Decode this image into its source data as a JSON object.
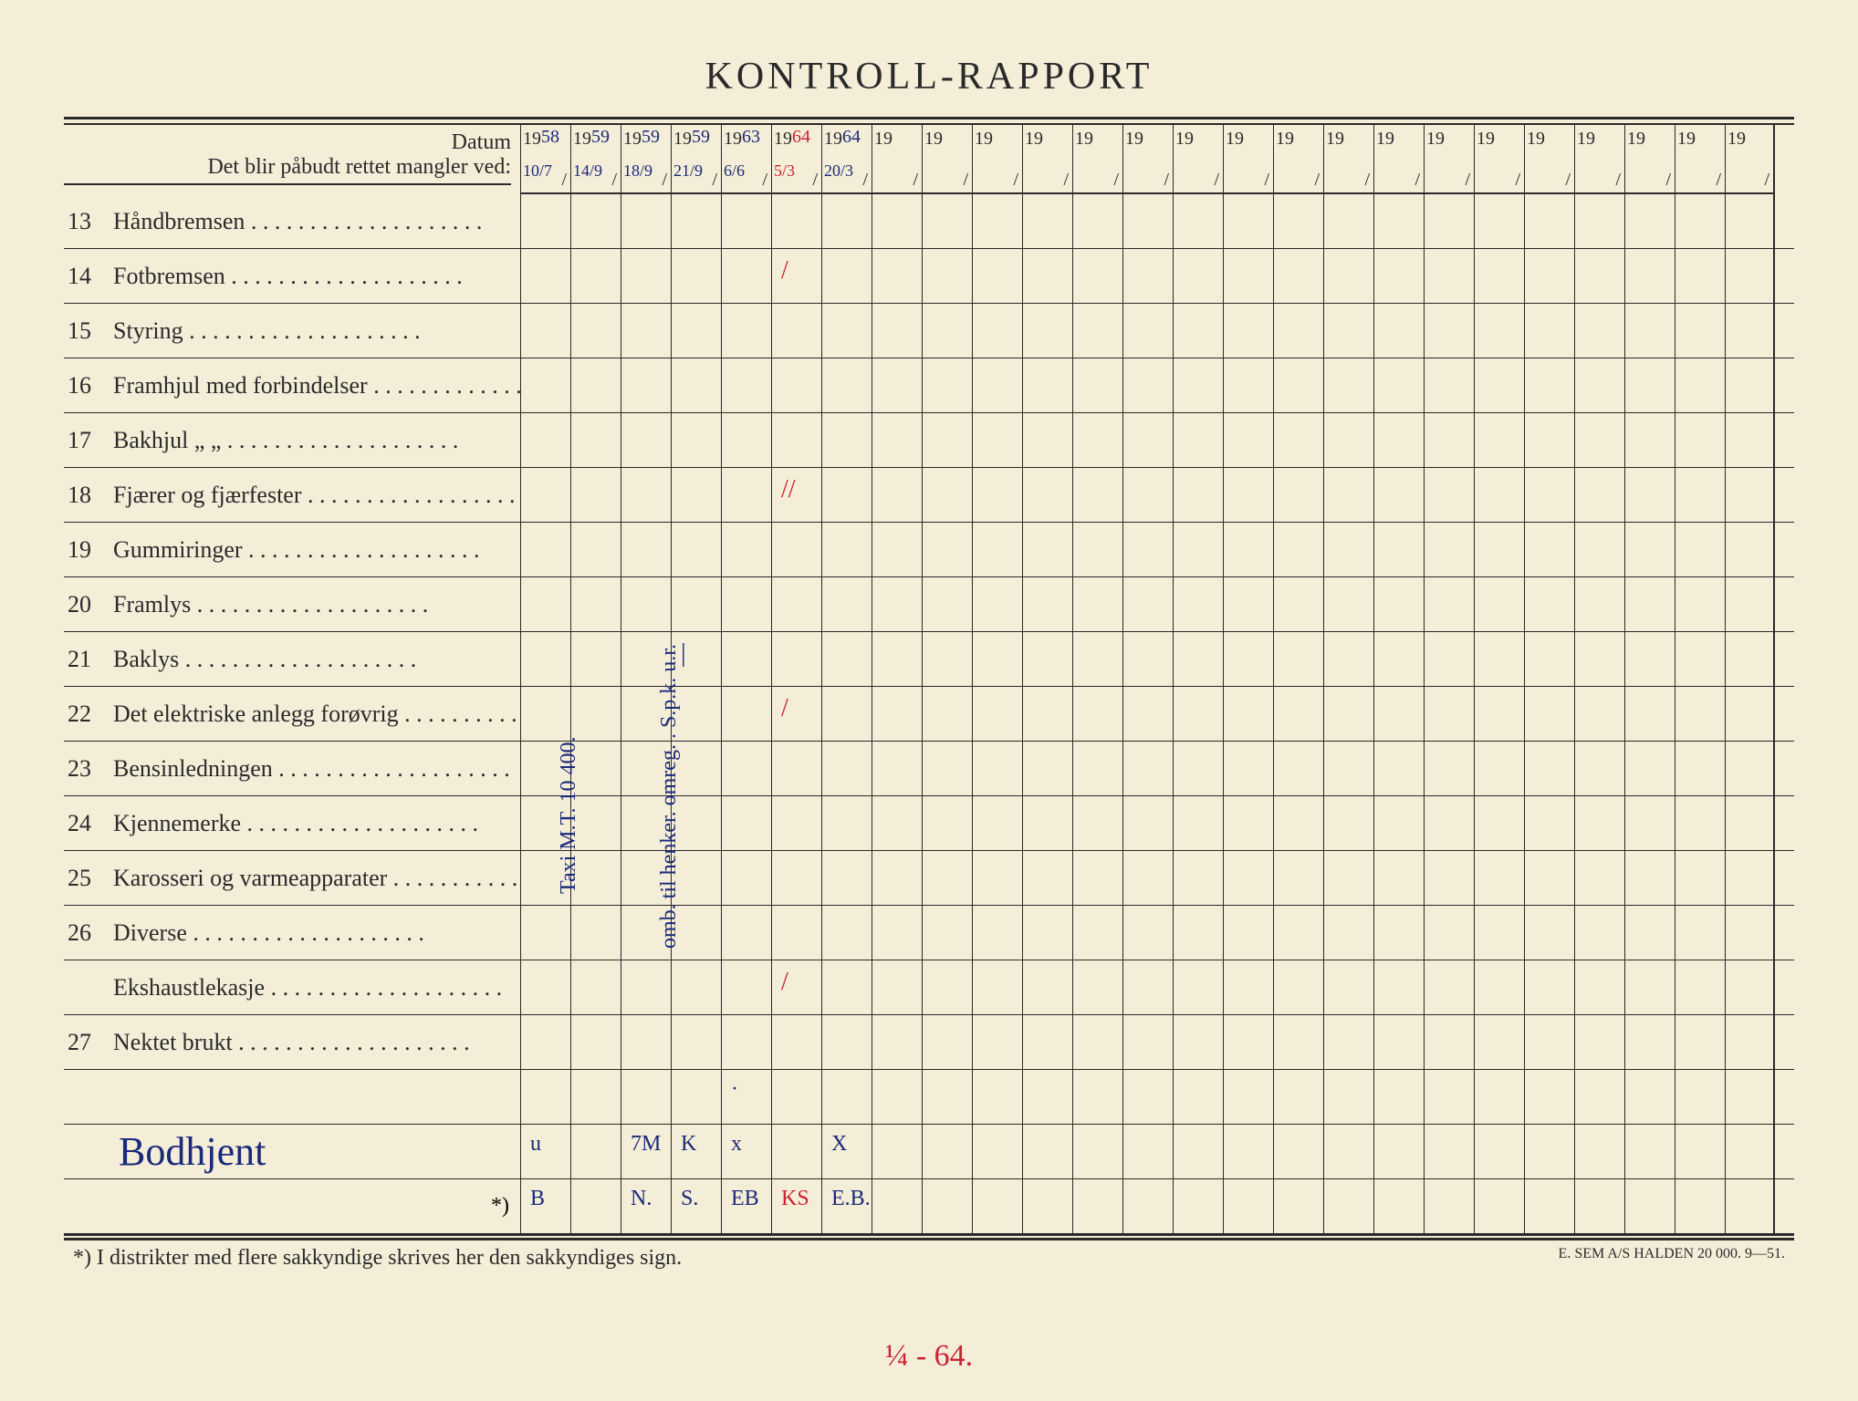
{
  "title": "KONTROLL-RAPPORT",
  "header": {
    "datum_label": "Datum",
    "mangler_label": "Det blir påbudt rettet mangler ved:"
  },
  "year_prefix": "19",
  "year_columns": [
    {
      "suffix": "58",
      "date": "10/7",
      "color": "blue"
    },
    {
      "suffix": "59",
      "date": "14/9",
      "color": "blue"
    },
    {
      "suffix": "59",
      "date": "18/9",
      "color": "blue"
    },
    {
      "suffix": "59",
      "date": "21/9",
      "color": "blue"
    },
    {
      "suffix": "63",
      "date": "6/6",
      "color": "blue"
    },
    {
      "suffix": "64",
      "date": "5/3",
      "color": "red"
    },
    {
      "suffix": "64",
      "date": "20/3",
      "color": "blue"
    },
    {
      "suffix": "",
      "date": "",
      "color": "blue"
    },
    {
      "suffix": "",
      "date": "",
      "color": "blue"
    },
    {
      "suffix": "",
      "date": "",
      "color": "blue"
    },
    {
      "suffix": "",
      "date": "",
      "color": "blue"
    },
    {
      "suffix": "",
      "date": "",
      "color": "blue"
    },
    {
      "suffix": "",
      "date": "",
      "color": "blue"
    },
    {
      "suffix": "",
      "date": "",
      "color": "blue"
    },
    {
      "suffix": "",
      "date": "",
      "color": "blue"
    },
    {
      "suffix": "",
      "date": "",
      "color": "blue"
    },
    {
      "suffix": "",
      "date": "",
      "color": "blue"
    },
    {
      "suffix": "",
      "date": "",
      "color": "blue"
    },
    {
      "suffix": "",
      "date": "",
      "color": "blue"
    },
    {
      "suffix": "",
      "date": "",
      "color": "blue"
    },
    {
      "suffix": "",
      "date": "",
      "color": "blue"
    },
    {
      "suffix": "",
      "date": "",
      "color": "blue"
    },
    {
      "suffix": "",
      "date": "",
      "color": "blue"
    },
    {
      "suffix": "",
      "date": "",
      "color": "blue"
    },
    {
      "suffix": "",
      "date": "",
      "color": "blue"
    }
  ],
  "rows": [
    {
      "num": "13",
      "label": "Håndbremsen",
      "marks": {}
    },
    {
      "num": "14",
      "label": "Fotbremsen",
      "marks": {
        "5": {
          "text": "/",
          "color": "red"
        }
      }
    },
    {
      "num": "15",
      "label": "Styring",
      "marks": {}
    },
    {
      "num": "16",
      "label": "Framhjul med forbindelser",
      "marks": {}
    },
    {
      "num": "17",
      "label": "Bakhjul      „          „",
      "marks": {}
    },
    {
      "num": "18",
      "label": "Fjærer og fjærfester",
      "marks": {
        "5": {
          "text": "//",
          "color": "red"
        }
      }
    },
    {
      "num": "19",
      "label": "Gummiringer",
      "marks": {}
    },
    {
      "num": "20",
      "label": "Framlys",
      "marks": {}
    },
    {
      "num": "21",
      "label": "Baklys",
      "marks": {
        "3": {
          "text": "|",
          "color": "blue"
        }
      }
    },
    {
      "num": "22",
      "label": "Det elektriske anlegg forøvrig",
      "marks": {
        "5": {
          "text": "/",
          "color": "red"
        }
      }
    },
    {
      "num": "23",
      "label": "Bensinledningen",
      "marks": {}
    },
    {
      "num": "24",
      "label": "Kjennemerke",
      "marks": {}
    },
    {
      "num": "25",
      "label": "Karosseri og varmeapparater",
      "marks": {}
    },
    {
      "num": "26",
      "label": "Diverse",
      "marks": {}
    },
    {
      "num": "",
      "label": "Ekshaustlekasje",
      "marks": {
        "5": {
          "text": "/",
          "color": "red"
        }
      }
    },
    {
      "num": "27",
      "label": "Nektet brukt",
      "marks": {}
    }
  ],
  "extra_rows": [
    {
      "label": "",
      "marks": {
        "4": {
          "text": "·",
          "color": "blue"
        }
      }
    },
    {
      "label": "_signature_",
      "marks": {
        "0": {
          "text": "u",
          "color": "blue"
        },
        "2": {
          "text": "7M",
          "color": "blue"
        },
        "3": {
          "text": "K",
          "color": "blue"
        },
        "4": {
          "text": "x",
          "color": "blue"
        },
        "6": {
          "text": "X",
          "color": "blue"
        }
      }
    },
    {
      "label": "*)",
      "marks": {
        "0": {
          "text": "B",
          "color": "blue"
        },
        "2": {
          "text": "N.",
          "color": "blue"
        },
        "3": {
          "text": "S.",
          "color": "blue"
        },
        "4": {
          "text": "EB",
          "color": "blue"
        },
        "5": {
          "text": "KS",
          "color": "red"
        },
        "6": {
          "text": "E.B.",
          "color": "blue"
        }
      }
    }
  ],
  "signature_text": "Bodhjent",
  "footnote_left": "*)   I distrikter med flere sakkyndige skrives her den sakkyndiges sign.",
  "footnote_right": "E. SEM A/S HALDEN   20 000.   9—51.",
  "bottom_handwrite": "¼ - 64.",
  "vertical_notes": [
    {
      "text": "Taxi M.T. 10 400.",
      "col": 0,
      "top_row": 13
    },
    {
      "text": "omb. til henker. omreg.  . S.p.k. u.r.",
      "col": 2,
      "top_row": 14
    }
  ],
  "colors": {
    "paper": "#f4edd8",
    "ink": "#2a2a2a",
    "blue_pen": "#1a2a7a",
    "red_pen": "#c23"
  },
  "dots": " . . . . . . . . . . . . . . . . . . . ."
}
